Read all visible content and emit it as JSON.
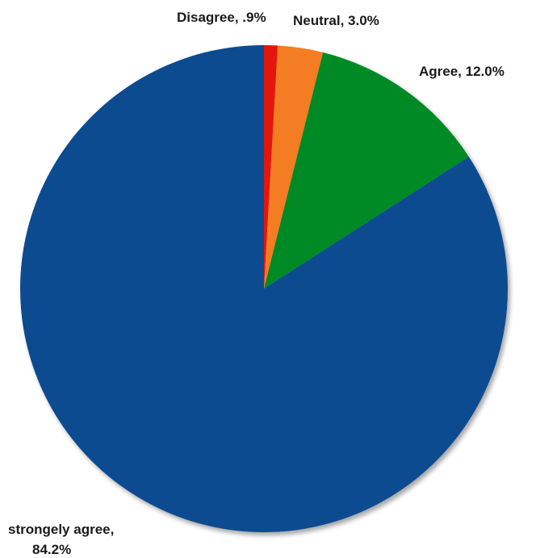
{
  "chart_data": {
    "type": "pie",
    "title": "",
    "start_angle_deg": 0,
    "direction": "clockwise",
    "slices": [
      {
        "label": "Disagree",
        "value": 0.9,
        "display": "Disagree, .9%",
        "color": "#e3120b"
      },
      {
        "label": "Neutral",
        "value": 3.0,
        "display": "Neutral, 3.0%",
        "color": "#f47b20"
      },
      {
        "label": "Agree",
        "value": 12.0,
        "display": "Agree, 12.0%",
        "color": "#008a28"
      },
      {
        "label": "strongely agree",
        "value": 84.2,
        "display_lines": [
          "strongely agree,",
          "84.2%"
        ],
        "color": "#0f4c90"
      }
    ],
    "legend": "none",
    "data_labels": "outside"
  }
}
